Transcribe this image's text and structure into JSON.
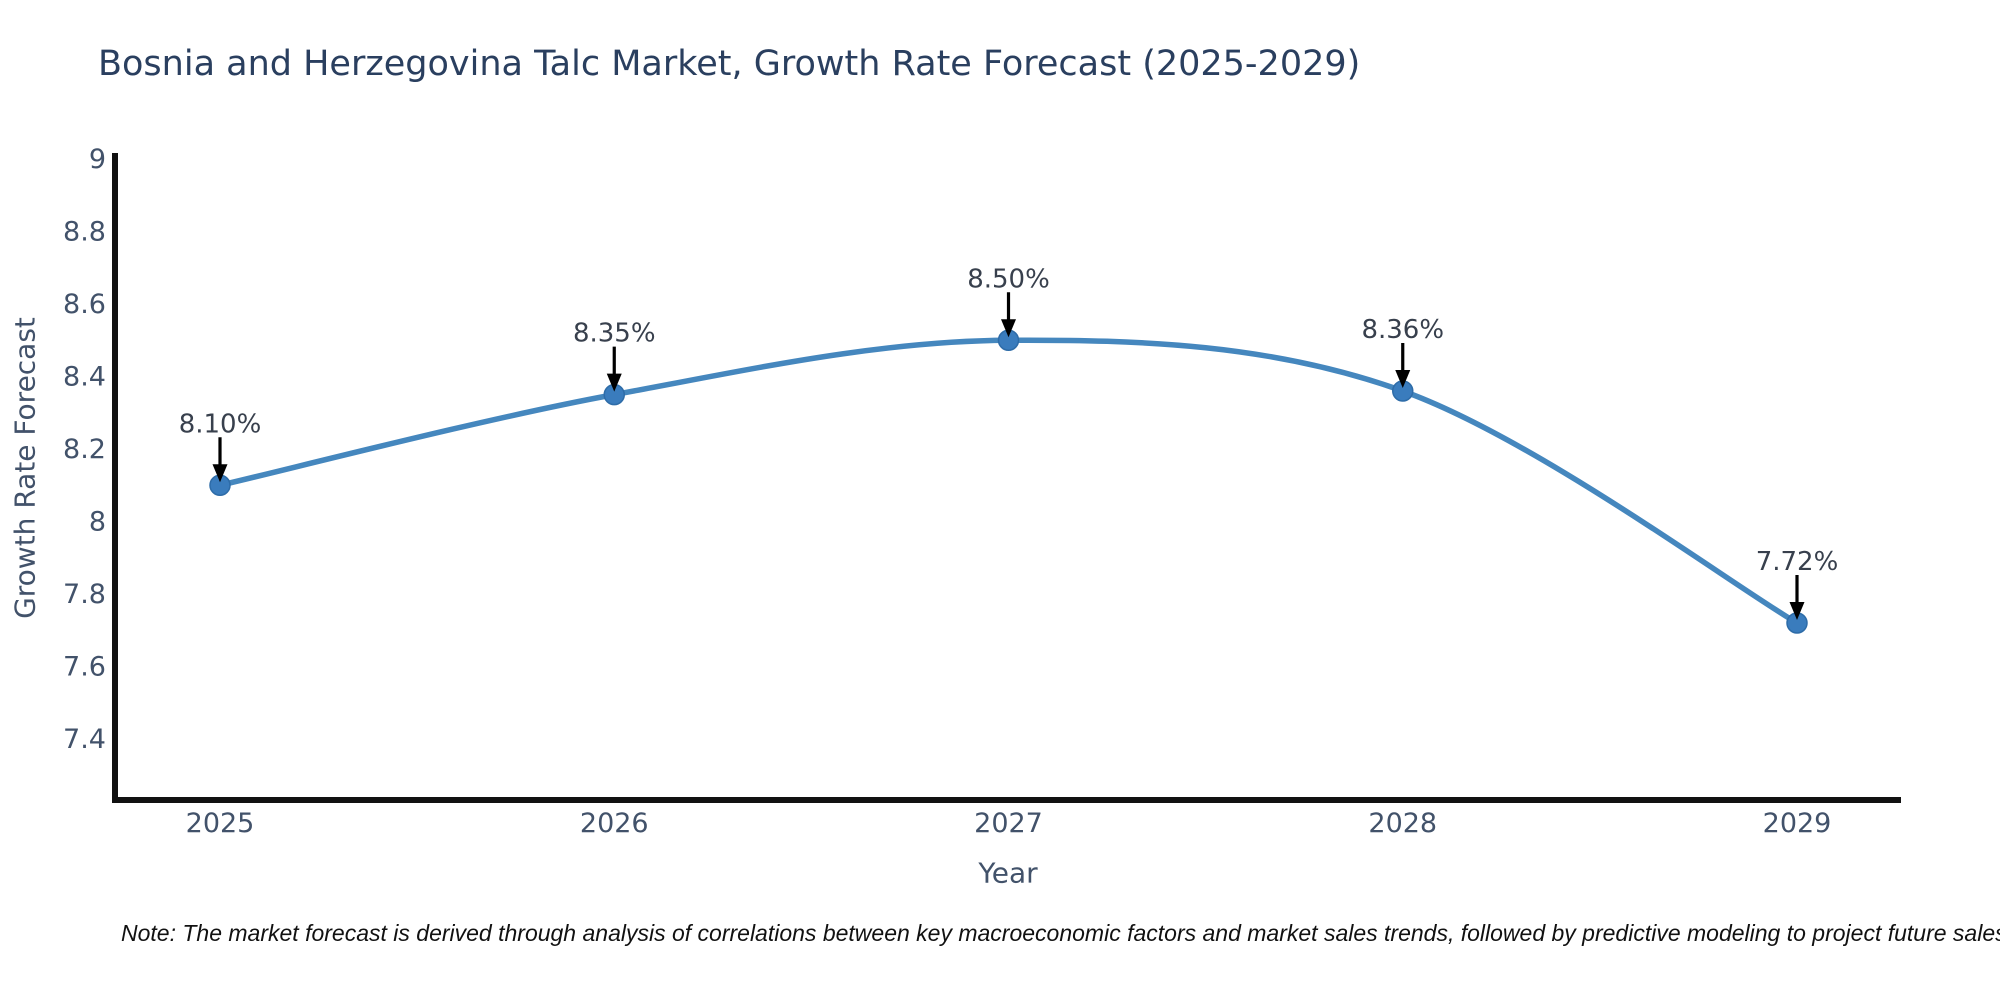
{
  "chart_data": {
    "type": "line",
    "title": "Bosnia and Herzegovina Talc Market, Growth Rate Forecast (2025-2029)",
    "xlabel": "Year",
    "ylabel": "Growth Rate Forecast",
    "categories": [
      "2025",
      "2026",
      "2027",
      "2028",
      "2029"
    ],
    "series": [
      {
        "name": "Growth Rate Forecast",
        "values": [
          8.1,
          8.35,
          8.5,
          8.36,
          7.72
        ]
      }
    ],
    "point_labels": [
      "8.10%",
      "8.35%",
      "8.50%",
      "8.36%",
      "7.72%"
    ],
    "y_ticks": [
      "9",
      "8.8",
      "8.6",
      "8.4",
      "8.2",
      "8",
      "7.8",
      "7.6",
      "7.4"
    ],
    "ylim": [
      7.22,
      9.01
    ],
    "grid": false,
    "legend": "none",
    "marker_shape": "circle",
    "annotation_arrows": "down",
    "note": "Note: The market forecast is derived through analysis of correlations between key macroeconomic factors and market sales trends, followed by predictive modeling to project future sales",
    "colors": {
      "background": "#ffffff",
      "line": "#4587be",
      "marker_fill": "#3a7cbd",
      "marker_edge": "#2e6ca8",
      "arrow": "#000000",
      "axis": "#111111",
      "title_text": "#2a3f5f",
      "tick_text": "#42526a",
      "annotation_text": "#38404d",
      "note_text": "#111111"
    }
  }
}
